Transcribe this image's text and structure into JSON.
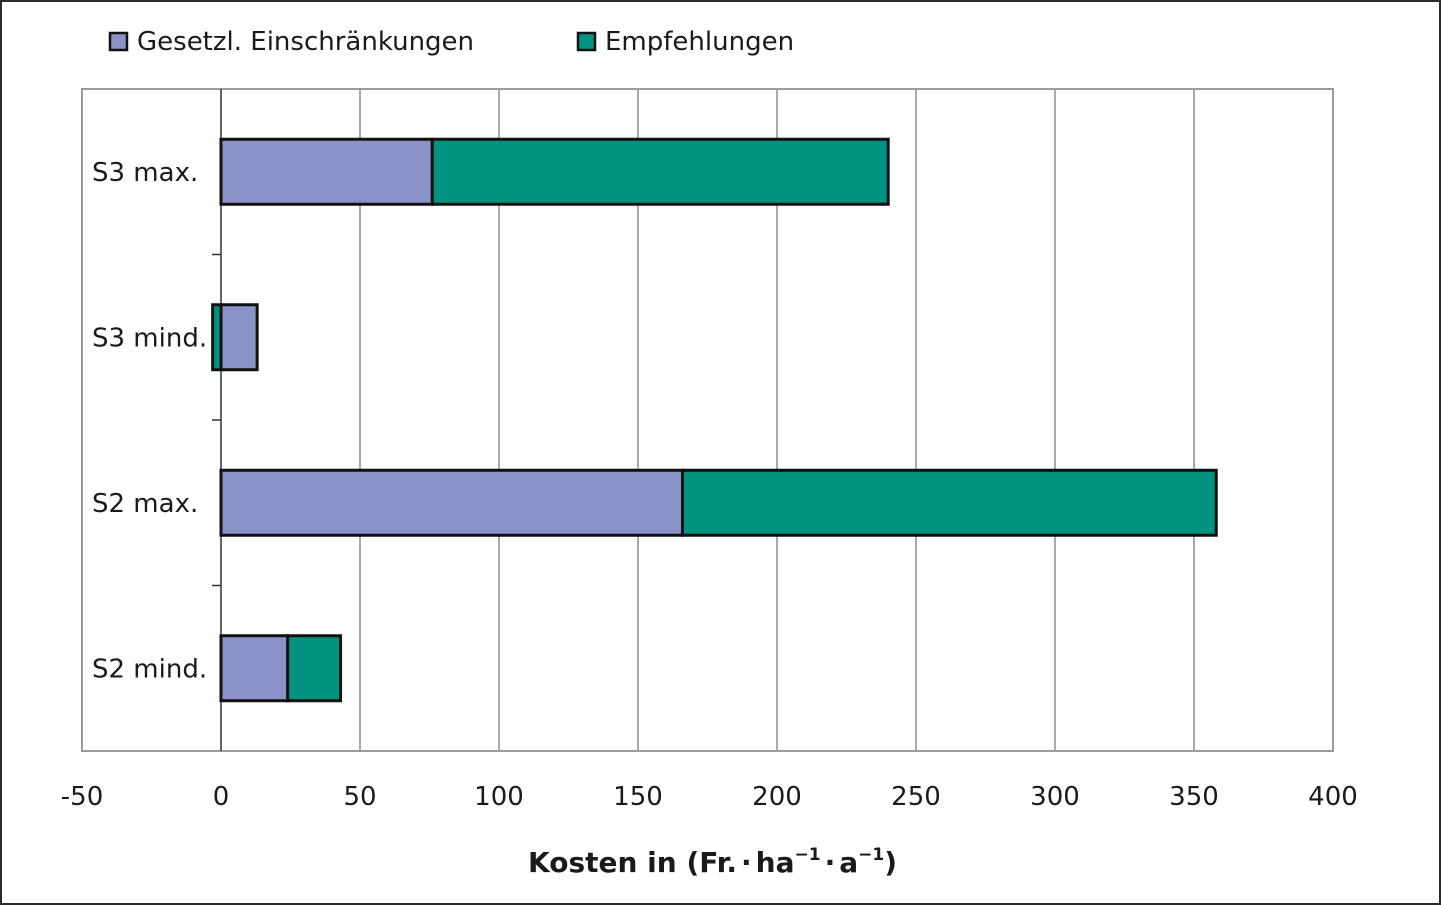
{
  "chart_data": {
    "type": "bar",
    "orientation": "horizontal",
    "stacked": true,
    "categories": [
      "S3 max.",
      "S3 mind.",
      "S2 max.",
      "S2 mind."
    ],
    "series": [
      {
        "name": "Gesetzl. Einschränkungen",
        "color": "#8a93c8",
        "values": [
          76,
          13,
          166,
          24
        ]
      },
      {
        "name": "Empfehlungen",
        "color": "#009380",
        "values": [
          164,
          -3,
          192,
          19
        ]
      }
    ],
    "xlim": [
      -50,
      400
    ],
    "xticks": [
      "-50",
      "0",
      "50",
      "100",
      "150",
      "200",
      "250",
      "300",
      "350",
      "400"
    ],
    "xlabel": {
      "prefix": "Kosten in (Fr.",
      "dot1": "·",
      "unit1": "ha",
      "exp1": "−1",
      "dot2": "·",
      "unit2": "a",
      "exp2": "−1",
      "suffix": ")"
    },
    "grid": "vertical",
    "legend": "top-left"
  }
}
